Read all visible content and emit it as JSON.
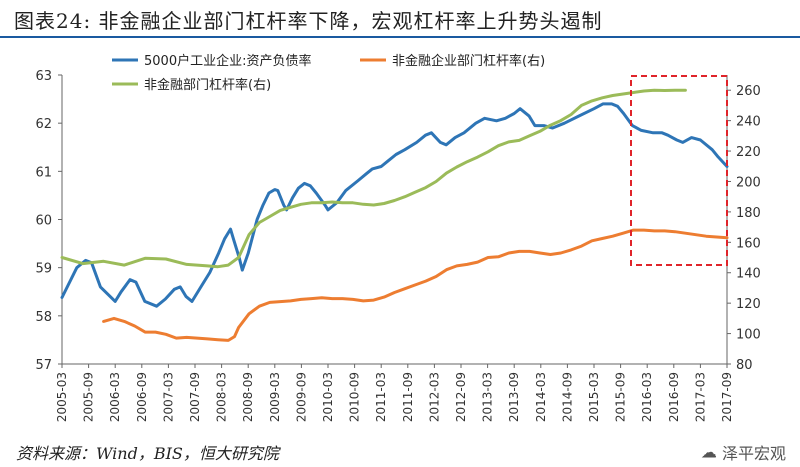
{
  "title": "图表24:     非金融企业部门杠杆率下降，宏观杠杆率上升势头遏制",
  "source": "资料来源：Wind，BIS，恒大研究院",
  "brand": "泽平宏观",
  "chart_data": {
    "type": "line",
    "x_categories": [
      "2005-03",
      "2005-09",
      "2006-03",
      "2006-09",
      "2007-03",
      "2007-09",
      "2008-03",
      "2008-09",
      "2009-03",
      "2009-09",
      "2010-03",
      "2010-09",
      "2011-03",
      "2011-09",
      "2012-03",
      "2012-09",
      "2013-03",
      "2013-09",
      "2014-03",
      "2014-09",
      "2015-03",
      "2015-09",
      "2016-03",
      "2016-09",
      "2017-03",
      "2017-09"
    ],
    "left_axis": {
      "min": 57,
      "max": 63,
      "ticks": [
        57,
        58,
        59,
        60,
        61,
        62,
        63
      ]
    },
    "right_axis": {
      "min": 80,
      "max": 270,
      "ticks": [
        80,
        100,
        120,
        140,
        160,
        180,
        200,
        220,
        240,
        260
      ]
    },
    "legend": {
      "placement": "top"
    },
    "series": [
      {
        "name": "5000户工业企业:资产负债率",
        "axis": "left",
        "color": "#2e75b6",
        "points": [
          [
            0,
            58.38
          ],
          [
            0.5,
            59.0
          ],
          [
            0.8,
            59.15
          ],
          [
            1.0,
            59.1
          ],
          [
            1.3,
            58.6
          ],
          [
            1.8,
            58.3
          ],
          [
            2.0,
            58.5
          ],
          [
            2.3,
            58.75
          ],
          [
            2.5,
            58.7
          ],
          [
            2.8,
            58.3
          ],
          [
            3.2,
            58.2
          ],
          [
            3.5,
            58.35
          ],
          [
            3.8,
            58.55
          ],
          [
            4.0,
            58.6
          ],
          [
            4.2,
            58.4
          ],
          [
            4.4,
            58.3
          ],
          [
            4.7,
            58.6
          ],
          [
            5.0,
            58.9
          ],
          [
            5.3,
            59.3
          ],
          [
            5.5,
            59.6
          ],
          [
            5.7,
            59.8
          ],
          [
            5.8,
            59.6
          ],
          [
            6.0,
            59.2
          ],
          [
            6.1,
            58.95
          ],
          [
            6.3,
            59.3
          ],
          [
            6.6,
            60.0
          ],
          [
            6.8,
            60.3
          ],
          [
            7.0,
            60.55
          ],
          [
            7.2,
            60.62
          ],
          [
            7.3,
            60.6
          ],
          [
            7.5,
            60.3
          ],
          [
            7.6,
            60.2
          ],
          [
            7.8,
            60.45
          ],
          [
            8.0,
            60.65
          ],
          [
            8.2,
            60.75
          ],
          [
            8.4,
            60.7
          ],
          [
            8.6,
            60.55
          ],
          [
            8.9,
            60.3
          ],
          [
            9.0,
            60.2
          ],
          [
            9.3,
            60.35
          ],
          [
            9.6,
            60.6
          ],
          [
            10.0,
            60.8
          ],
          [
            10.3,
            60.95
          ],
          [
            10.5,
            61.05
          ],
          [
            10.8,
            61.1
          ],
          [
            11.0,
            61.2
          ],
          [
            11.3,
            61.35
          ],
          [
            11.6,
            61.45
          ],
          [
            12.0,
            61.6
          ],
          [
            12.3,
            61.75
          ],
          [
            12.5,
            61.8
          ],
          [
            12.8,
            61.6
          ],
          [
            13.0,
            61.55
          ],
          [
            13.3,
            61.7
          ],
          [
            13.6,
            61.8
          ],
          [
            14.0,
            62.0
          ],
          [
            14.3,
            62.1
          ],
          [
            14.7,
            62.05
          ],
          [
            15.0,
            62.1
          ],
          [
            15.3,
            62.2
          ],
          [
            15.5,
            62.3
          ],
          [
            15.8,
            62.15
          ],
          [
            16.0,
            61.95
          ],
          [
            16.3,
            61.95
          ],
          [
            16.6,
            61.9
          ],
          [
            17.0,
            62.0
          ],
          [
            17.5,
            62.15
          ],
          [
            18.0,
            62.3
          ],
          [
            18.3,
            62.4
          ],
          [
            18.6,
            62.4
          ],
          [
            18.8,
            62.35
          ],
          [
            19.0,
            62.2
          ],
          [
            19.3,
            61.95
          ],
          [
            19.6,
            61.85
          ],
          [
            20.0,
            61.8
          ],
          [
            20.3,
            61.8
          ],
          [
            20.5,
            61.75
          ],
          [
            20.8,
            61.65
          ],
          [
            21.0,
            61.6
          ],
          [
            21.3,
            61.7
          ],
          [
            21.6,
            61.65
          ],
          [
            22.0,
            61.45
          ],
          [
            22.2,
            61.3
          ],
          [
            22.5,
            61.1
          ]
        ]
      },
      {
        "name": "非金融企业部门杠杆率(右)",
        "axis": "right",
        "color": "#ed7d31",
        "points": [
          [
            2,
            108
          ],
          [
            2.5,
            110
          ],
          [
            3,
            108
          ],
          [
            3.5,
            105
          ],
          [
            4,
            101
          ],
          [
            4.5,
            101
          ],
          [
            5,
            99.5
          ],
          [
            5.5,
            97
          ],
          [
            6,
            97.5
          ],
          [
            6.5,
            97
          ],
          [
            7,
            96.5
          ],
          [
            7.5,
            96
          ],
          [
            8,
            95.5
          ],
          [
            8.3,
            98
          ],
          [
            8.5,
            104
          ],
          [
            9,
            113
          ],
          [
            9.5,
            118
          ],
          [
            10,
            120.5
          ],
          [
            10.5,
            121
          ],
          [
            11,
            121.5
          ],
          [
            11.5,
            122.5
          ],
          [
            12,
            123
          ],
          [
            12.5,
            123.5
          ],
          [
            13,
            123
          ],
          [
            13.5,
            123
          ],
          [
            14,
            122.5
          ],
          [
            14.5,
            121.5
          ],
          [
            15,
            122
          ],
          [
            15.5,
            124
          ],
          [
            16,
            127
          ],
          [
            16.5,
            129.5
          ],
          [
            17,
            132
          ],
          [
            17.5,
            134.5
          ],
          [
            18,
            137.5
          ],
          [
            18.5,
            142
          ],
          [
            19,
            144.5
          ],
          [
            19.5,
            145.5
          ],
          [
            20,
            147
          ],
          [
            20.5,
            150
          ],
          [
            21,
            150.5
          ],
          [
            21.5,
            153
          ],
          [
            22,
            154
          ],
          [
            22.5,
            154
          ],
          [
            23,
            153
          ],
          [
            23.5,
            152
          ],
          [
            24,
            153
          ],
          [
            24.5,
            155
          ],
          [
            25,
            157.5
          ],
          [
            25.5,
            161
          ],
          [
            26,
            162.5
          ],
          [
            26.5,
            164
          ],
          [
            27,
            166
          ],
          [
            27.5,
            168
          ],
          [
            28,
            168
          ],
          [
            28.5,
            167.5
          ],
          [
            29,
            167.5
          ],
          [
            29.5,
            167
          ],
          [
            30,
            166
          ],
          [
            30.5,
            165
          ],
          [
            31,
            164
          ],
          [
            31.5,
            163.5
          ],
          [
            32,
            163
          ]
        ]
      },
      {
        "name": "非金融部门杠杆率(右)",
        "axis": "right",
        "color": "#9bbb59",
        "points": [
          [
            0,
            150
          ],
          [
            1,
            146
          ],
          [
            2,
            147.5
          ],
          [
            3,
            145
          ],
          [
            4,
            149.5
          ],
          [
            5,
            149
          ],
          [
            6,
            145.5
          ],
          [
            7,
            144.5
          ],
          [
            7.5,
            144
          ],
          [
            8,
            145
          ],
          [
            8.5,
            150
          ],
          [
            9,
            165
          ],
          [
            9.5,
            173
          ],
          [
            10,
            177
          ],
          [
            10.5,
            181
          ],
          [
            11,
            183
          ],
          [
            11.5,
            185
          ],
          [
            12,
            186
          ],
          [
            12.5,
            186
          ],
          [
            13,
            186.5
          ],
          [
            13.5,
            186
          ],
          [
            14,
            186
          ],
          [
            14.5,
            185
          ],
          [
            15,
            184.5
          ],
          [
            15.5,
            185.5
          ],
          [
            16,
            187.5
          ],
          [
            16.5,
            190
          ],
          [
            17,
            193
          ],
          [
            17.5,
            196
          ],
          [
            18,
            200
          ],
          [
            18.5,
            205.5
          ],
          [
            19,
            209.5
          ],
          [
            19.5,
            213
          ],
          [
            20,
            216
          ],
          [
            20.5,
            219.5
          ],
          [
            21,
            223.5
          ],
          [
            21.5,
            226
          ],
          [
            22,
            227
          ],
          [
            22.5,
            230
          ],
          [
            23,
            233
          ],
          [
            23.5,
            237
          ],
          [
            24,
            240
          ],
          [
            24.5,
            244
          ],
          [
            25,
            250
          ],
          [
            25.5,
            253
          ],
          [
            26,
            255
          ],
          [
            26.5,
            256.5
          ],
          [
            27,
            257.5
          ],
          [
            27.5,
            258.5
          ],
          [
            28,
            259.5
          ],
          [
            28.5,
            260
          ],
          [
            29,
            259.8
          ],
          [
            29.5,
            260
          ],
          [
            30,
            260
          ]
        ]
      }
    ]
  }
}
